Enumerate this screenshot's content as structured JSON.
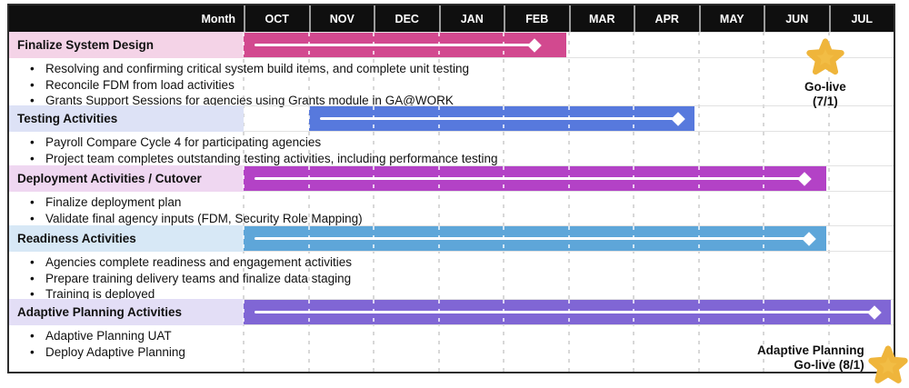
{
  "header": {
    "month_label": "Month",
    "months": [
      "OCT",
      "NOV",
      "DEC",
      "JAN",
      "FEB",
      "MAR",
      "APR",
      "MAY",
      "JUN",
      "JUL"
    ]
  },
  "colors": {
    "header_bg": "#0f0f0f",
    "header_text": "#ffffff",
    "grid_dash": "#d8d8d8",
    "star": "#f2bd45",
    "star_edge": "#efb53b"
  },
  "chart_data": {
    "type": "bar",
    "variant": "gantt-timeline",
    "x_axis": {
      "unit": "months",
      "labels": [
        "OCT",
        "NOV",
        "DEC",
        "JAN",
        "FEB",
        "MAR",
        "APR",
        "MAY",
        "JUN",
        "JUL"
      ],
      "range": [
        0,
        10
      ]
    },
    "grid": "dashed-monthly",
    "tasks": [
      {
        "name": "Finalize System Design",
        "start": 0,
        "end": 4.97,
        "marker": 4.47,
        "start_month": "OCT",
        "end_month": "FEB",
        "color": "#d2498f",
        "label_bg": "#f4d3e7",
        "bullets": [
          "Resolving and confirming critical system build items, and complete unit testing",
          "Reconcile FDM from load activities",
          "Grants Support Sessions for agencies using Grants module in GA@WORK"
        ]
      },
      {
        "name": "Testing Activities",
        "start": 1.0,
        "end": 6.94,
        "marker": 6.68,
        "start_month": "NOV",
        "end_month": "APR",
        "color": "#5779dd",
        "label_bg": "#dde2f6",
        "bullets": [
          "Payroll Compare Cycle 4 for participating agencies",
          "Project team completes outstanding testing activities, including performance testing"
        ]
      },
      {
        "name": "Deployment Activities / Cutover",
        "start": 0,
        "end": 8.96,
        "marker": 8.63,
        "start_month": "OCT",
        "end_month": "JUN",
        "color": "#b342c6",
        "label_bg": "#efd7f1",
        "bullets": [
          "Finalize deployment plan",
          "Validate final agency inputs (FDM, Security Role Mapping)"
        ]
      },
      {
        "name": "Readiness Activities",
        "start": 0,
        "end": 8.96,
        "marker": 8.7,
        "start_month": "OCT",
        "end_month": "JUN",
        "color": "#5ea6d9",
        "label_bg": "#d7e8f6",
        "bullets": [
          "Agencies complete readiness and engagement activities",
          "Prepare training delivery teams and finalize data staging",
          "Training is deployed"
        ]
      },
      {
        "name": "Adaptive Planning Activities",
        "start": 0,
        "end": 9.96,
        "marker": 9.7,
        "start_month": "OCT",
        "end_month": "JUL",
        "color": "#8066d5",
        "label_bg": "#e3def6",
        "bullets": [
          "Adaptive Planning UAT",
          "Deploy Adaptive Planning"
        ]
      }
    ],
    "milestones": [
      {
        "label": "Go-live",
        "sublabel": "(7/1)",
        "month_position": 8.95
      },
      {
        "label": "Adaptive Planning",
        "sublabel": "Go-live (8/1)",
        "month_position": 9.94
      }
    ]
  }
}
